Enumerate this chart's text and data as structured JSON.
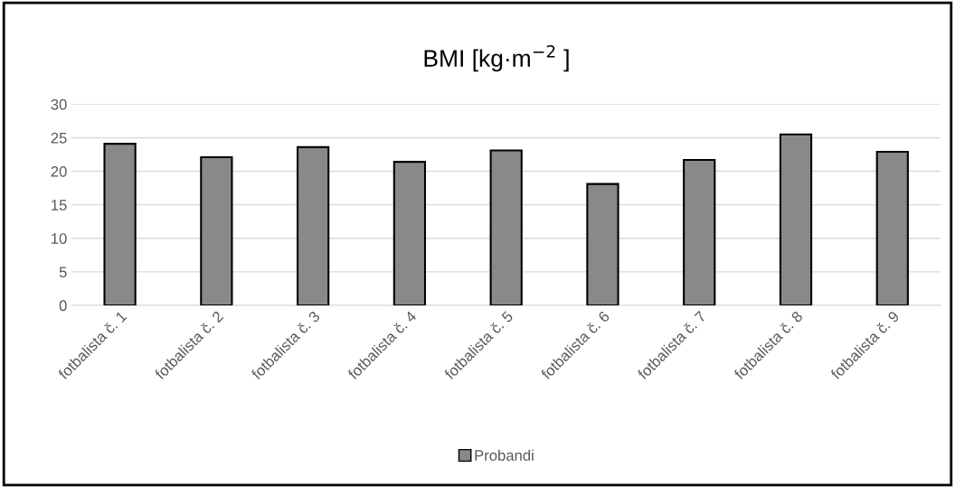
{
  "chart_data": {
    "type": "bar",
    "title": "BMI [kg·m$^{−2}$ ]",
    "categories": [
      "fotbalista č. 1",
      "fotbalista č. 2",
      "fotbalista č. 3",
      "fotbalista č. 4",
      "fotbalista č. 5",
      "fotbalista č. 6",
      "fotbalista č. 7",
      "fotbalista č. 8",
      "fotbalista č. 9"
    ],
    "series": [
      {
        "name": "Probandi",
        "color": "#898989",
        "values": [
          24.1,
          22.1,
          23.6,
          21.4,
          23.1,
          18.1,
          21.7,
          25.5,
          22.9
        ]
      }
    ],
    "ylim": [
      0,
      30
    ],
    "yticks": [
      0,
      5,
      10,
      15,
      20,
      25,
      30
    ],
    "grid": "y",
    "legend": "bottom"
  }
}
